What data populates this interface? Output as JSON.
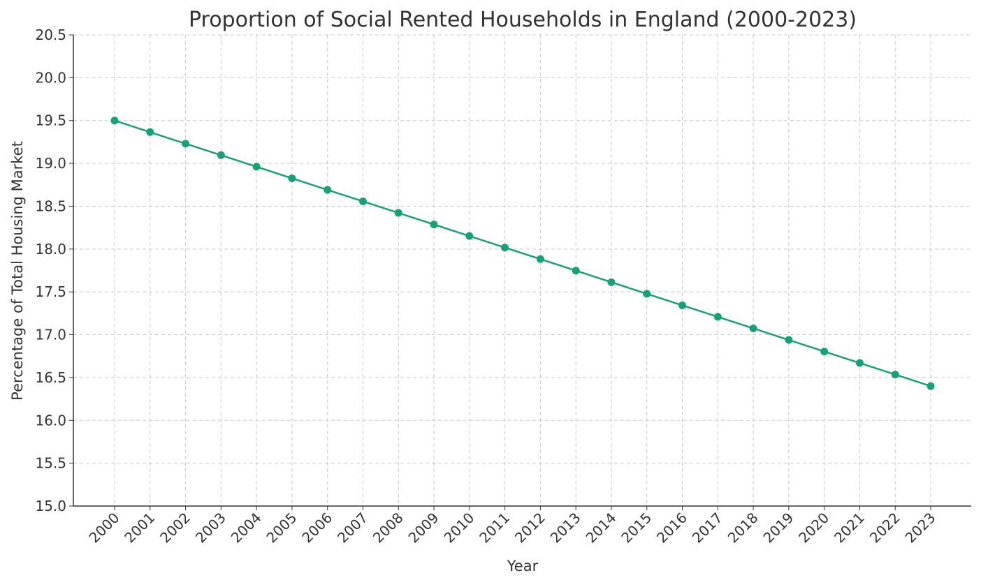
{
  "chart_data": {
    "type": "line",
    "title": "Proportion of Social Rented Households in England (2000-2023)",
    "xlabel": "Year",
    "ylabel": "Percentage of Total Housing Market",
    "categories": [
      "2000",
      "2001",
      "2002",
      "2003",
      "2004",
      "2005",
      "2006",
      "2007",
      "2008",
      "2009",
      "2010",
      "2011",
      "2012",
      "2013",
      "2014",
      "2015",
      "2016",
      "2017",
      "2018",
      "2019",
      "2020",
      "2021",
      "2022",
      "2023"
    ],
    "series": [
      {
        "values": [
          19.5,
          19.365,
          19.23,
          19.096,
          18.961,
          18.826,
          18.691,
          18.557,
          18.422,
          18.287,
          18.152,
          18.017,
          17.883,
          17.748,
          17.613,
          17.478,
          17.343,
          17.209,
          17.074,
          16.939,
          16.804,
          16.67,
          16.535,
          16.4
        ],
        "color": "#17a07a",
        "marker": "circle"
      }
    ],
    "ylim": [
      15.0,
      20.5
    ],
    "yticks": [
      "15.0",
      "15.5",
      "16.0",
      "16.5",
      "17.0",
      "17.5",
      "18.0",
      "18.5",
      "19.0",
      "19.5",
      "20.0",
      "20.5"
    ],
    "grid": true,
    "grid_style": "dashed"
  }
}
